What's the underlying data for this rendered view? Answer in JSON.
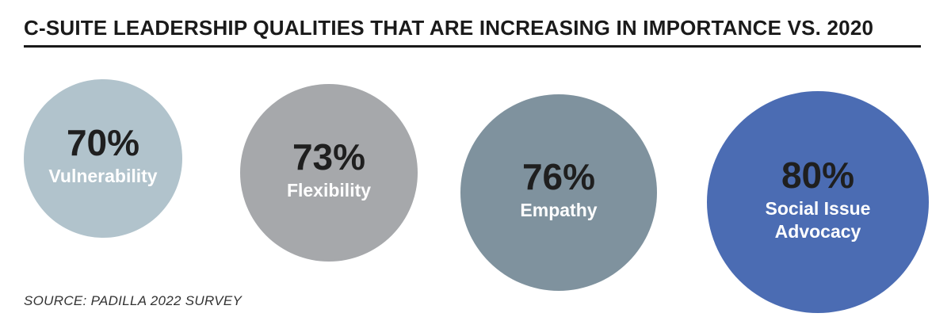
{
  "chart_data": {
    "type": "scatter",
    "title": "C-SUITE LEADERSHIP QUALITIES THAT ARE INCREASING IN IMPORTANCE VS. 2020",
    "unit": "%",
    "series": [
      {
        "label": "70%",
        "value": 70,
        "lines": [
          "Vulnerability"
        ],
        "color": "#b1c3cc"
      },
      {
        "label": "73%",
        "value": 73,
        "lines": [
          "Flexibility"
        ],
        "color": "#a6a8ab"
      },
      {
        "label": "76%",
        "value": 76,
        "lines": [
          "Empathy"
        ],
        "color": "#7f929e"
      },
      {
        "label": "80%",
        "value": 80,
        "lines": [
          "Social Issue",
          "Advocacy"
        ],
        "color": "#4b6cb3"
      }
    ],
    "source": "SOURCE: PADILLA 2022 SURVEY"
  }
}
